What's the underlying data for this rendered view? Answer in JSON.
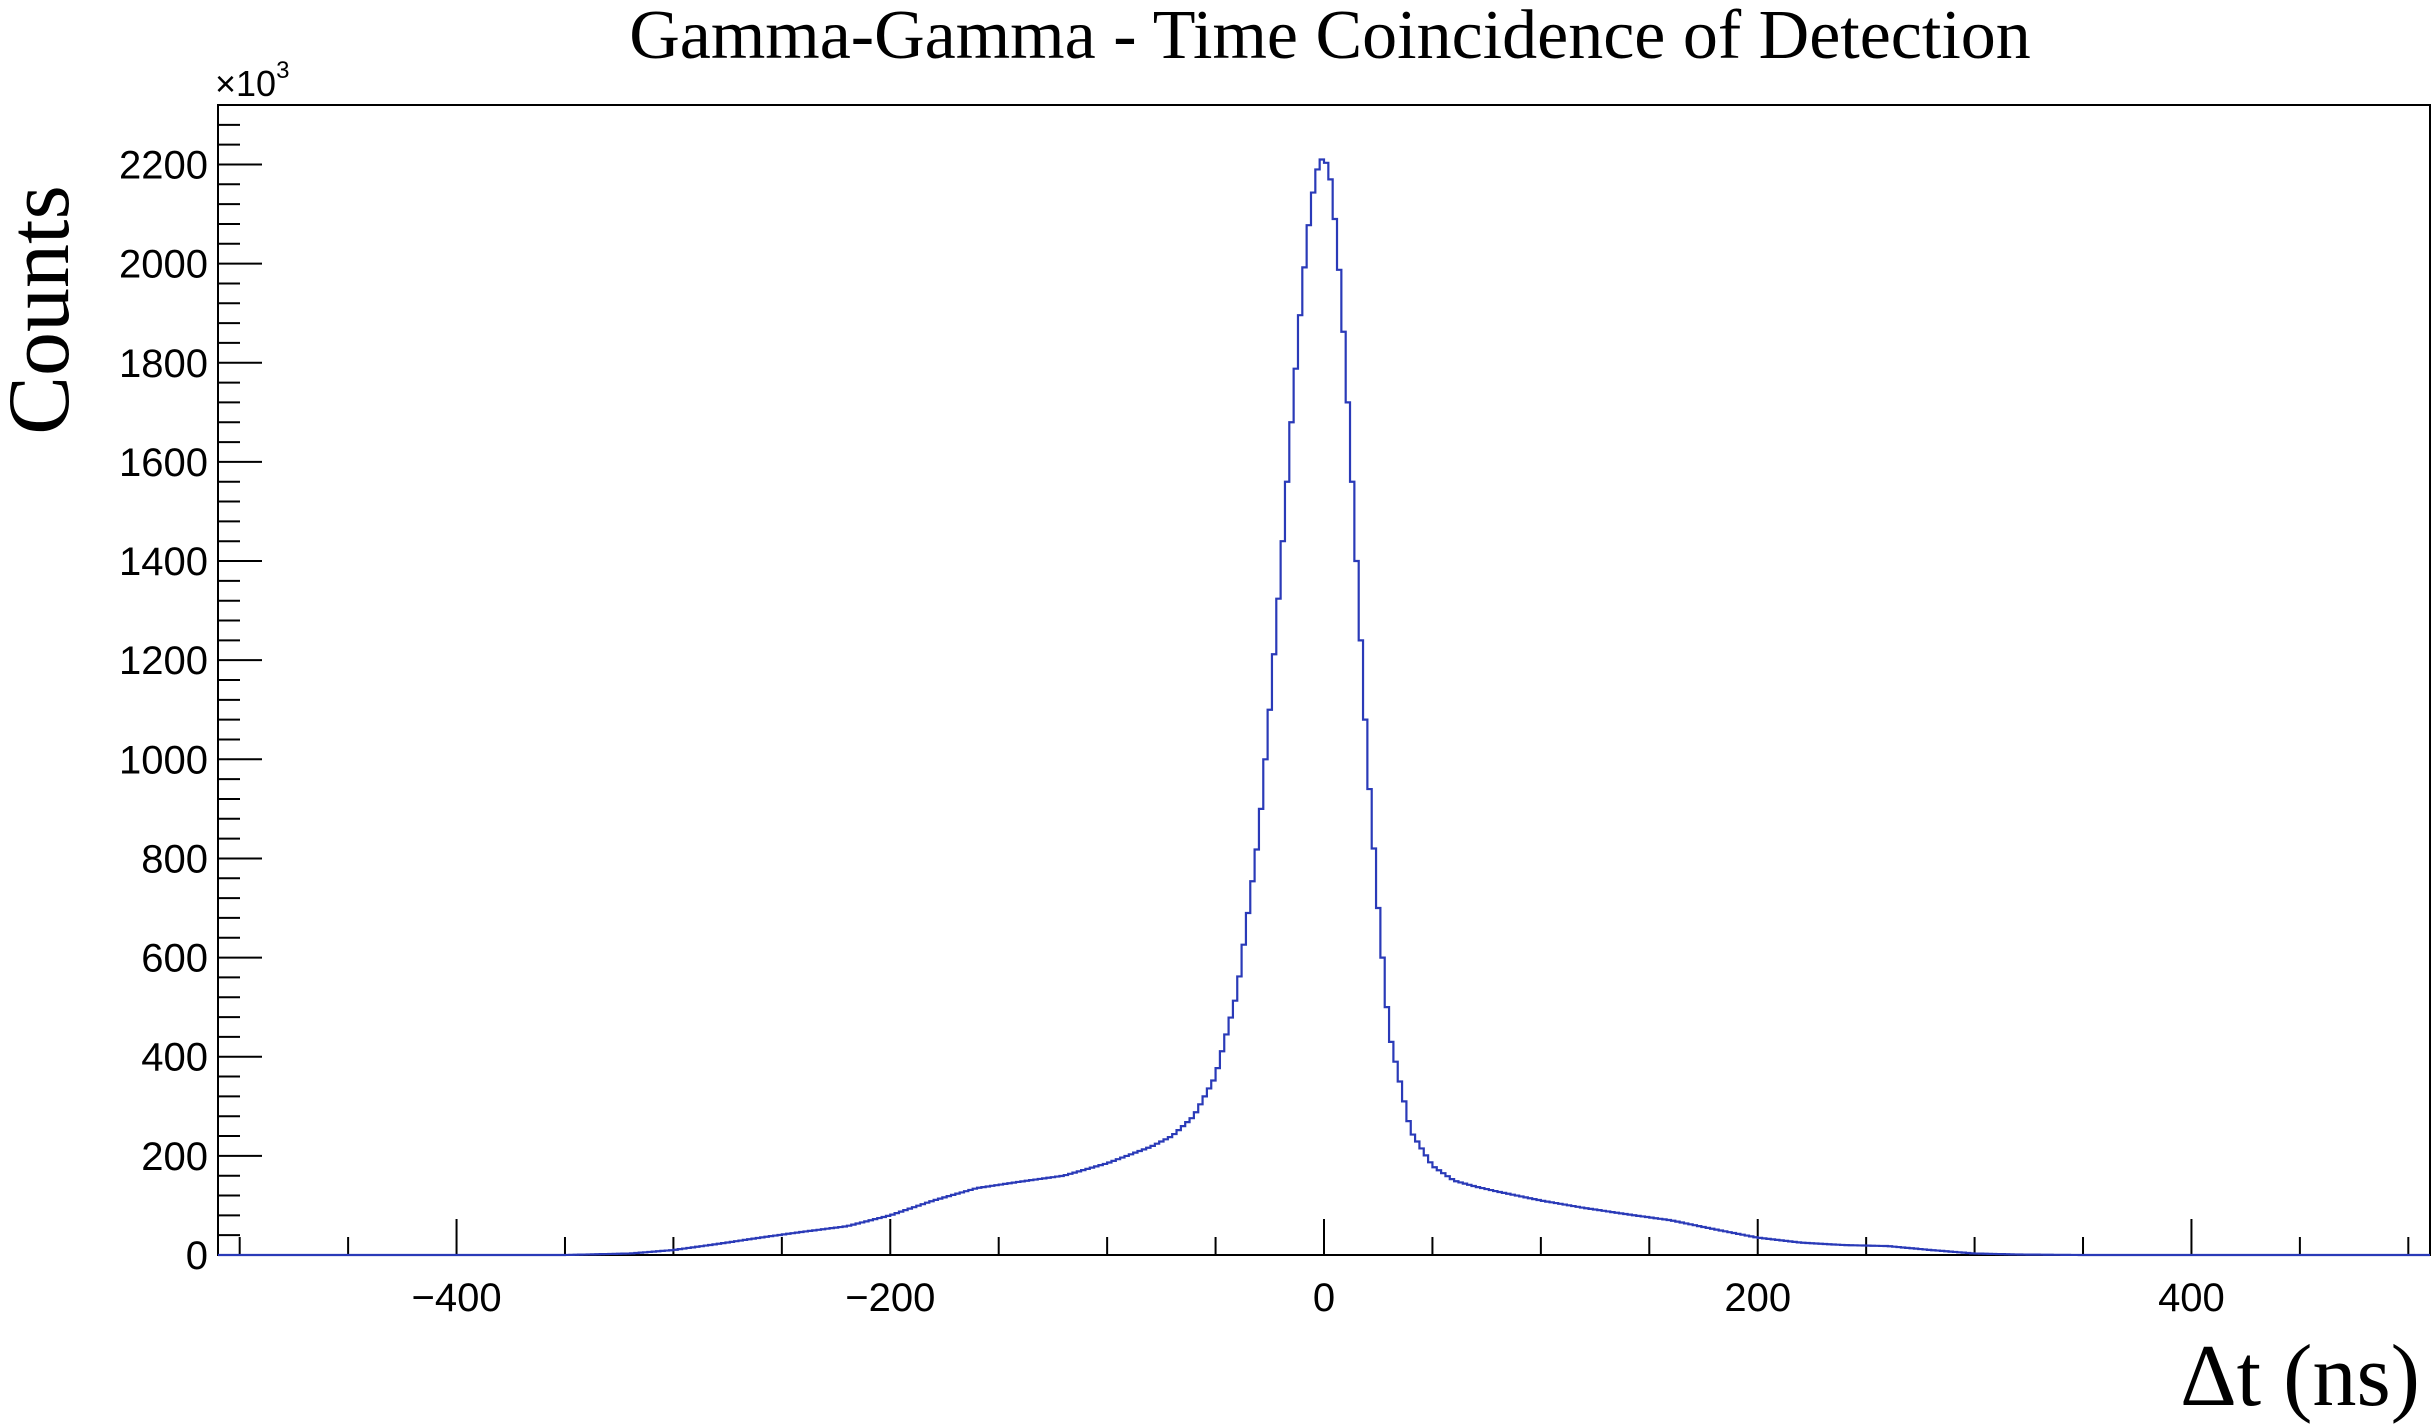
{
  "chart_data": {
    "type": "line",
    "title": "Gamma-Gamma - Time Coincidence of Detection",
    "xlabel": "Δt (ns)",
    "ylabel": "Counts",
    "y_multiplier_label": "×10",
    "y_multiplier_exponent": "3",
    "xlim": [
      -510,
      510
    ],
    "ylim": [
      0,
      2320
    ],
    "x_ticks": [
      -400,
      -200,
      0,
      200,
      400
    ],
    "x_tick_labels": [
      "−400",
      "−200",
      "0",
      "200",
      "400"
    ],
    "y_ticks": [
      0,
      200,
      400,
      600,
      800,
      1000,
      1200,
      1400,
      1600,
      1800,
      2000,
      2200
    ],
    "y_tick_labels": [
      "0",
      "200",
      "400",
      "600",
      "800",
      "1000",
      "1200",
      "1400",
      "1600",
      "1800",
      "2000",
      "2200"
    ],
    "histogram_style": "step",
    "grid": false,
    "line_color": "#2a3ab8",
    "series": [
      {
        "x": [
          -510,
          -350,
          -320,
          -300,
          -280,
          -260,
          -240,
          -220,
          -200,
          -180,
          -160,
          -140,
          -120,
          -100,
          -80,
          -70,
          -60,
          -50,
          -40,
          -30,
          -25,
          -20,
          -15,
          -10,
          -6,
          -3,
          0,
          3,
          6,
          10,
          15,
          20,
          25,
          30,
          40,
          50,
          60,
          70,
          80,
          100,
          120,
          140,
          160,
          180,
          200,
          220,
          240,
          260,
          280,
          300,
          320,
          350,
          510
        ],
        "values": [
          0,
          0,
          3,
          10,
          22,
          35,
          47,
          58,
          80,
          110,
          135,
          148,
          160,
          185,
          218,
          240,
          280,
          360,
          530,
          850,
          1100,
          1380,
          1680,
          1950,
          2120,
          2190,
          2220,
          2170,
          2050,
          1800,
          1400,
          1000,
          700,
          450,
          250,
          180,
          150,
          138,
          128,
          110,
          95,
          82,
          70,
          52,
          35,
          25,
          20,
          18,
          10,
          3,
          1,
          0,
          0
        ]
      }
    ]
  }
}
